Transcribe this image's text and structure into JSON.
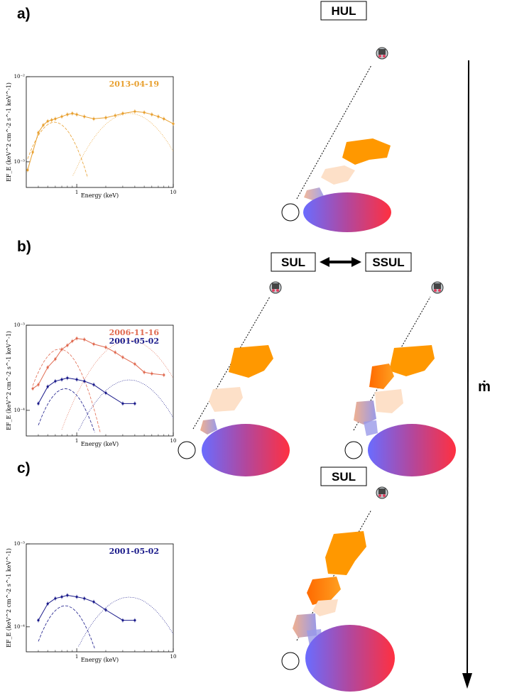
{
  "panels": [
    {
      "label": "a)"
    },
    {
      "label": "b)"
    },
    {
      "label": "c)"
    }
  ],
  "states": {
    "hul": "HUL",
    "sul": "SUL",
    "ssul": "SSUL",
    "sul_c": "SUL"
  },
  "mdot_label": "ṁ",
  "colors": {
    "disk_left": "#6a6cff",
    "disk_mid": "#b2479d",
    "disk_right": "#ff3040",
    "wind_orange": "#ff9800",
    "wind_light": "#fde0c8",
    "obs_2013": "#e8a030",
    "obs_2006": "#e06a50",
    "obs_2001": "#1a1a8a"
  },
  "icons": [
    "telescope-icon",
    "compact-object-icon"
  ],
  "chart_data": [
    {
      "type": "line",
      "panel": "a)",
      "xscale": "log",
      "yscale": "log",
      "xlabel": "Energy (keV)",
      "ylabel": "EF_E (keV^2 cm^-2 s^-1 keV^-1)",
      "xlim": [
        0.3,
        10
      ],
      "ylim": [
        0.0005,
        0.01
      ],
      "x_ticks": [
        "1",
        "10"
      ],
      "y_ticks": [
        "10⁻²",
        "10⁻³"
      ],
      "series": [
        {
          "name": "2013-04-19",
          "color": "#e8a030",
          "x": [
            0.31,
            0.35,
            0.4,
            0.45,
            0.5,
            0.55,
            0.6,
            0.7,
            0.8,
            0.9,
            1.0,
            1.2,
            1.5,
            2.0,
            2.5,
            3.0,
            4.0,
            5.0,
            6.0,
            7.0,
            8.0,
            10.0
          ],
          "y": [
            0.0008,
            0.0013,
            0.0022,
            0.0027,
            0.003,
            0.0031,
            0.0032,
            0.0034,
            0.0036,
            0.0037,
            0.0036,
            0.0034,
            0.0032,
            0.0033,
            0.0035,
            0.0037,
            0.0039,
            0.0038,
            0.0036,
            0.0034,
            0.0032,
            0.0028
          ]
        }
      ]
    },
    {
      "type": "line",
      "panel": "b)",
      "xscale": "log",
      "yscale": "log",
      "xlabel": "Energy (keV)",
      "ylabel": "EF_E (keV^2 cm^-2 s^-1 keV^-1)",
      "xlim": [
        0.3,
        10
      ],
      "ylim": [
        5e-05,
        0.001
      ],
      "x_ticks": [
        "1",
        "10"
      ],
      "y_ticks": [
        "10⁻³",
        "10⁻⁴"
      ],
      "series": [
        {
          "name": "2006-11-16",
          "color": "#e06a50",
          "x": [
            0.35,
            0.4,
            0.5,
            0.6,
            0.7,
            0.8,
            0.9,
            1.0,
            1.2,
            1.5,
            2.0,
            2.5,
            3.0,
            4.0,
            5.0,
            6.0,
            8.0
          ],
          "y": [
            0.00018,
            0.0002,
            0.00032,
            0.0004,
            0.00052,
            0.00058,
            0.00065,
            0.0007,
            0.00068,
            0.0006,
            0.00055,
            0.00048,
            0.00042,
            0.00035,
            0.00028,
            0.00027,
            0.00026
          ]
        },
        {
          "name": "2001-05-02",
          "color": "#1a1a8a",
          "x": [
            0.4,
            0.5,
            0.6,
            0.7,
            0.8,
            1.0,
            1.2,
            1.5,
            2.0,
            3.0,
            4.0
          ],
          "y": [
            0.00012,
            0.00019,
            0.00022,
            0.00023,
            0.00024,
            0.00023,
            0.00022,
            0.0002,
            0.00016,
            0.00012,
            0.00012
          ]
        }
      ]
    },
    {
      "type": "line",
      "panel": "c)",
      "xscale": "log",
      "yscale": "log",
      "xlabel": "Energy (keV)",
      "ylabel": "EF_E (keV^2 cm^-2 s^-1 keV^-1)",
      "xlim": [
        0.3,
        10
      ],
      "ylim": [
        5e-05,
        0.001
      ],
      "x_ticks": [
        "1",
        "10"
      ],
      "y_ticks": [
        "10⁻³",
        "10⁻⁴"
      ],
      "series": [
        {
          "name": "2001-05-02",
          "color": "#1a1a8a",
          "x": [
            0.4,
            0.5,
            0.6,
            0.7,
            0.8,
            1.0,
            1.2,
            1.5,
            2.0,
            3.0,
            4.0
          ],
          "y": [
            0.00012,
            0.00019,
            0.00022,
            0.00023,
            0.00024,
            0.00023,
            0.00022,
            0.0002,
            0.00016,
            0.00012,
            0.00012
          ]
        }
      ]
    }
  ]
}
